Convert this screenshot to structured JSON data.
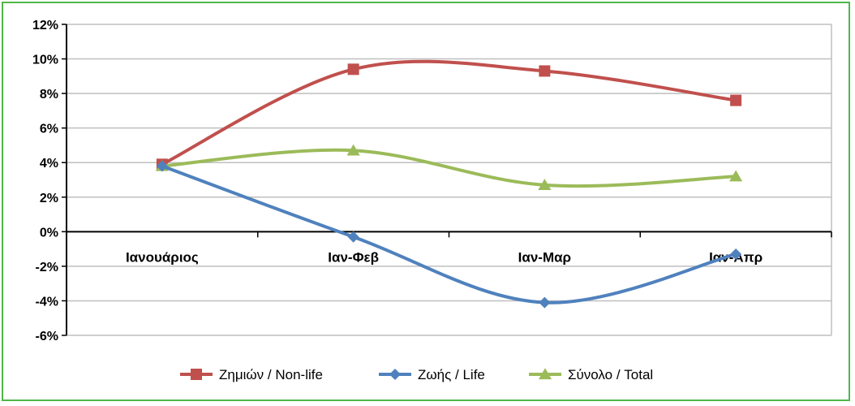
{
  "chart_data": {
    "type": "line",
    "title": "",
    "xlabel": "",
    "ylabel": "",
    "categories": [
      "Ιανουάριος",
      "Ιαν-Φεβ",
      "Ιαν-Μαρ",
      "Ιαν-Απρ"
    ],
    "ylim": [
      -6,
      12
    ],
    "yticks": [
      12,
      10,
      8,
      6,
      4,
      2,
      0,
      -2,
      -4,
      -6
    ],
    "ytick_labels": [
      "12%",
      "10%",
      "8%",
      "6%",
      "4%",
      "2%",
      "0%",
      "-2%",
      "-4%",
      "-6%"
    ],
    "grid": true,
    "smooth": true,
    "legend_position": "bottom",
    "series": [
      {
        "name": "Ζημιών / Non-life",
        "values": [
          3.9,
          9.4,
          9.3,
          7.6
        ],
        "color": "#c0504d",
        "marker": "square"
      },
      {
        "name": "Ζωής / Life",
        "values": [
          3.8,
          -0.3,
          -4.1,
          -1.3
        ],
        "color": "#4f81bd",
        "marker": "diamond"
      },
      {
        "name": "Σύνολο / Total",
        "values": [
          3.8,
          4.7,
          2.7,
          3.2
        ],
        "color": "#9bbb59",
        "marker": "triangle"
      }
    ]
  }
}
